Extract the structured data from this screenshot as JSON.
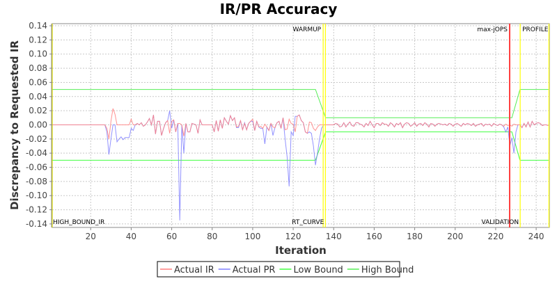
{
  "chart_data": {
    "type": "line",
    "title": "IR/PR Accuracy",
    "xlabel": "Iteration",
    "ylabel": "Discrepancy to Requested IR",
    "xlim": [
      1,
      246.5
    ],
    "ylim": [
      -0.145,
      0.143
    ],
    "xticks": [
      20,
      40,
      60,
      80,
      100,
      120,
      140,
      160,
      180,
      200,
      220,
      240
    ],
    "xtick_labels": [
      "20",
      "40",
      "60",
      "80",
      "100",
      "120",
      "140",
      "160",
      "180",
      "200",
      "220",
      "240"
    ],
    "yticks": [
      0.14,
      0.12,
      0.1,
      0.08,
      0.06,
      0.04,
      0.02,
      0.0,
      -0.02,
      -0.04,
      -0.06,
      -0.08,
      -0.1,
      -0.12,
      -0.14
    ],
    "ytick_labels": [
      "0.14",
      "0.12",
      "0.10",
      "0.08",
      "0.06",
      "0.04",
      "0.02",
      "0.00",
      "-0.02",
      "-0.04",
      "-0.06",
      "-0.08",
      "-0.10",
      "-0.12",
      "-0.14"
    ],
    "grid": true,
    "legend_position": "bottom",
    "series": [
      {
        "name": "Actual IR",
        "color": "#ff7f7f",
        "x_from": 1,
        "values": [
          0,
          0,
          0,
          0,
          0,
          0,
          0,
          0,
          0,
          0,
          0,
          0,
          0,
          0,
          0,
          0,
          0,
          0,
          0,
          0,
          0,
          0,
          0,
          0,
          0,
          0,
          0,
          -0.005,
          -0.02,
          0.005,
          0.023,
          0.015,
          0,
          0,
          0,
          0,
          0,
          0,
          0,
          0.008,
          0,
          0,
          0.002,
          0,
          0.003,
          -0.002,
          0,
          0.004,
          0.009,
          0,
          0.014,
          -0.013,
          0.005,
          0.005,
          -0.015,
          -0.005,
          0.003,
          0.006,
          -0.012,
          0.005,
          0.007,
          -0.01,
          0.002,
          0.002,
          0,
          -0.016,
          0.002,
          -0.01,
          -0.01,
          0.002,
          0.001,
          0,
          -0.012,
          0.007,
          0,
          0,
          0,
          0,
          0,
          0,
          -0.01,
          0.006,
          -0.009,
          0.007,
          -0.005,
          0.01,
          0.005,
          0.001,
          0.013,
          0.006,
          0.01,
          -0.003,
          -0.002,
          0.006,
          -0.007,
          0.002,
          -0.007,
          0.002,
          0.005,
          0.008,
          -0.008,
          0.005,
          -0.003,
          -0.002,
          -0.005,
          0.001,
          -0.003,
          -0.008,
          0.002,
          -0.003,
          -0.004,
          0.003,
          0.005,
          -0.005,
          0.01,
          -0.007,
          -0.006,
          0.008,
          0.002,
          0.001,
          -0.01,
          0.012,
          0.014,
          0.006,
          0.003,
          -0.01,
          -0.012,
          0.004,
          0.003,
          -0.005,
          -0.008,
          -0.003,
          0,
          0,
          0,
          0,
          0,
          0,
          0,
          0,
          0.002,
          0.001,
          -0.003,
          -0.002,
          0.003,
          -0.003,
          0.001,
          0.004,
          -0.001,
          -0.002,
          0.003,
          0.003,
          0.001,
          0,
          -0.003,
          0.002,
          -0.001,
          0.005,
          0,
          -0.004,
          0.002,
          0.002,
          -0.001,
          0.003,
          0.001,
          0.001,
          -0.002,
          0.003,
          0.001,
          -0.003,
          0.002,
          0,
          0.003,
          -0.004,
          0.001,
          0.003,
          0.002,
          -0.002,
          0,
          0.003,
          -0.002,
          0.001,
          0.002,
          -0.001,
          0.003,
          0.001,
          -0.003,
          0.002,
          0.001,
          -0.002,
          0.001,
          0.002,
          0.001,
          0,
          0.001,
          -0.001,
          0.002,
          0.001,
          -0.002,
          0.001,
          0.002,
          0,
          -0.002,
          0.002,
          0,
          0.002,
          0.001,
          -0.001,
          0.002,
          -0.002,
          0,
          0.001,
          0.002,
          -0.002,
          0.001,
          0,
          0.001,
          -0.002,
          0.002,
          0,
          -0.001,
          0.001,
          0,
          -0.002,
          0.001,
          -0.001,
          0,
          -0.002,
          0.001,
          0,
          0,
          0,
          -0.004,
          0.002,
          -0.003,
          0.004,
          -0.003,
          0.005,
          0,
          0.002,
          0.003,
          0.002,
          -0.001,
          0,
          0,
          -0.001
        ]
      },
      {
        "name": "Actual PR",
        "color": "#7f7fff",
        "x_from": 1,
        "values": [
          0,
          0,
          0,
          0,
          0,
          0,
          0,
          0,
          0,
          0,
          0,
          0,
          0,
          0,
          0,
          0,
          0,
          0,
          0,
          0,
          0,
          0,
          0,
          0,
          0,
          0,
          0,
          -0.01,
          -0.042,
          -0.02,
          0,
          0,
          -0.024,
          -0.02,
          -0.017,
          -0.021,
          -0.018,
          -0.018,
          -0.018,
          -0.005,
          -0.008,
          0,
          0.002,
          0,
          0.003,
          -0.002,
          0,
          0.004,
          0.009,
          0,
          0.014,
          -0.013,
          0.005,
          0.005,
          -0.015,
          -0.005,
          0.003,
          0.006,
          0.02,
          -0.005,
          0.007,
          -0.01,
          0.002,
          -0.135,
          0,
          -0.04,
          0.002,
          -0.01,
          -0.01,
          0.002,
          0.001,
          0,
          -0.012,
          0.007,
          0,
          0,
          0,
          0,
          0,
          0,
          -0.01,
          0.006,
          -0.009,
          0.007,
          -0.005,
          0.01,
          0.005,
          0.001,
          0.013,
          0.006,
          0.01,
          -0.004,
          -0.004,
          0.006,
          -0.007,
          0.003,
          -0.007,
          0.002,
          0.005,
          0.005,
          -0.008,
          0.005,
          -0.003,
          -0.005,
          -0.005,
          -0.027,
          -0.003,
          -0.008,
          0.002,
          -0.015,
          -0.004,
          0.003,
          0.005,
          -0.005,
          0.01,
          -0.02,
          -0.045,
          -0.087,
          -0.01,
          -0.015,
          0.012,
          0.012,
          0.014,
          0.006,
          0.003,
          -0.01,
          -0.012,
          -0.01,
          -0.012,
          -0.03,
          -0.057,
          -0.04,
          -0.02,
          -0.005,
          0,
          0,
          0,
          0,
          0,
          0,
          0.002,
          0.001,
          -0.003,
          -0.002,
          0.003,
          -0.003,
          0.001,
          0.004,
          -0.001,
          -0.002,
          0.003,
          0.003,
          0.001,
          0,
          -0.003,
          0.002,
          -0.001,
          0.005,
          0,
          -0.004,
          0.002,
          0.002,
          -0.001,
          0.003,
          0.001,
          0.001,
          -0.002,
          0.003,
          0.001,
          -0.003,
          0.002,
          0,
          0.003,
          -0.004,
          0.001,
          0.003,
          0.002,
          -0.002,
          0,
          0.003,
          -0.002,
          0.001,
          0.002,
          -0.001,
          0.003,
          0.001,
          -0.003,
          0.002,
          0.001,
          -0.002,
          0.001,
          0.002,
          0.001,
          0,
          0.001,
          -0.001,
          0.002,
          0.001,
          -0.002,
          0.001,
          0.002,
          0,
          -0.002,
          0.002,
          0,
          0.002,
          0.001,
          -0.001,
          0.002,
          -0.002,
          0,
          0.001,
          0.002,
          -0.002,
          0.001,
          0,
          0.001,
          -0.002,
          0.002,
          0,
          -0.001,
          0.001,
          0,
          -0.003,
          -0.01,
          -0.003,
          -0.03,
          -0.018,
          -0.04,
          -0.01,
          0,
          0,
          -0.004,
          0.002,
          -0.003,
          0.004,
          -0.003,
          0.005,
          0,
          0.002,
          0.003,
          0.002,
          -0.001,
          0,
          0,
          -0.001
        ]
      },
      {
        "name": "Low Bound",
        "color": "#40ff40",
        "points": [
          [
            1,
            -0.05
          ],
          [
            131,
            -0.05
          ],
          [
            136,
            -0.01
          ],
          [
            228,
            -0.01
          ],
          [
            232,
            -0.05
          ],
          [
            246.5,
            -0.05
          ]
        ]
      },
      {
        "name": "High Bound",
        "color": "#55ee55",
        "points": [
          [
            1,
            0.05
          ],
          [
            131,
            0.05
          ],
          [
            136,
            0.01
          ],
          [
            228,
            0.01
          ],
          [
            232,
            0.05
          ],
          [
            246.5,
            0.05
          ]
        ]
      }
    ],
    "markers": [
      {
        "x": 1,
        "color": "#dddd00",
        "top_label": "",
        "bottom_label": "HIGH_BOUND_IR",
        "side": "right"
      },
      {
        "x": 134.8,
        "color": "#ffff00",
        "top_label": "WARMUP",
        "bottom_label": "",
        "side": "left"
      },
      {
        "x": 135.9,
        "color": "#ffff00",
        "top_label": "",
        "bottom_label": "RT_CURVE",
        "side": "left"
      },
      {
        "x": 226.9,
        "color": "#ff4040",
        "top_label": "max-jOPS",
        "bottom_label": "",
        "side": "left"
      },
      {
        "x": 232.1,
        "color": "#ffff00",
        "top_label": "PROFILE",
        "bottom_label": "VALIDATION",
        "side": "mixed"
      },
      {
        "x": 246.3,
        "color": "#ffff00",
        "top_label": "",
        "bottom_label": "",
        "side": "left"
      }
    ]
  }
}
